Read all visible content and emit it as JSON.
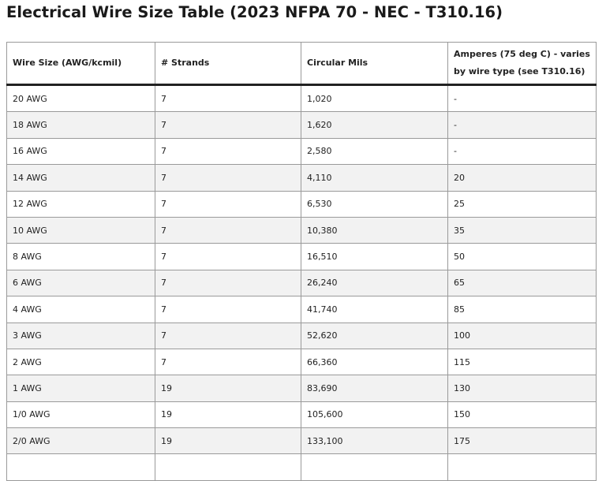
{
  "header": {
    "title": "Electrical Wire Size Table (2023 NFPA 70 - NEC - T310.16)"
  },
  "table": {
    "columns": [
      "Wire Size (AWG/kcmil)",
      "# Strands",
      "Circular Mils",
      "Amperes (75 deg C) - varies by wire type (see T310.16)"
    ],
    "rows": [
      [
        "20 AWG",
        "7",
        "1,020",
        "-"
      ],
      [
        "18 AWG",
        "7",
        "1,620",
        "-"
      ],
      [
        "16 AWG",
        "7",
        "2,580",
        "-"
      ],
      [
        "14 AWG",
        "7",
        "4,110",
        "20"
      ],
      [
        "12 AWG",
        "7",
        "6,530",
        "25"
      ],
      [
        "10 AWG",
        "7",
        "10,380",
        "35"
      ],
      [
        "8 AWG",
        "7",
        "16,510",
        "50"
      ],
      [
        "6 AWG",
        "7",
        "26,240",
        "65"
      ],
      [
        "4 AWG",
        "7",
        "41,740",
        "85"
      ],
      [
        "3 AWG",
        "7",
        "52,620",
        "100"
      ],
      [
        "2 AWG",
        "7",
        "66,360",
        "115"
      ],
      [
        "1 AWG",
        "19",
        "83,690",
        "130"
      ],
      [
        "1/0 AWG",
        "19",
        "105,600",
        "150"
      ],
      [
        "2/0 AWG",
        "19",
        "133,100",
        "175"
      ]
    ]
  }
}
